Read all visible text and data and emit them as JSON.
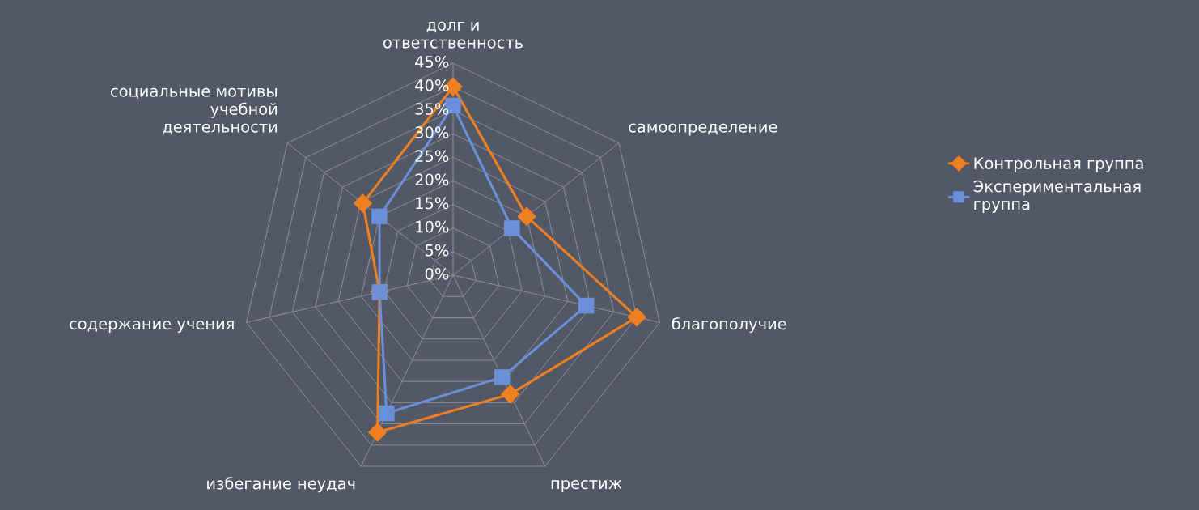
{
  "chart_data": {
    "type": "radar",
    "categories": [
      "долг и\nответственность",
      "самоопределение",
      "благополучие",
      "престиж",
      "избегание неудач",
      "содержание учения",
      "социальные мотивы\nучебной\nдеятельности"
    ],
    "series": [
      {
        "name": "Контрольная группа",
        "color": "#f07f22",
        "marker": "diamond",
        "values": [
          40,
          20,
          40,
          28,
          37,
          16,
          24.5
        ]
      },
      {
        "name": "Экспериментальная\nгруппа",
        "color": "#6b8fd8",
        "marker": "square",
        "values": [
          36,
          16,
          29,
          24,
          32.5,
          16,
          20
        ]
      }
    ],
    "ylim": [
      0,
      45
    ],
    "yticks": [
      {
        "value": 0,
        "label": "0%"
      },
      {
        "value": 5,
        "label": "5%"
      },
      {
        "value": 10,
        "label": "10%"
      },
      {
        "value": 15,
        "label": "15%"
      },
      {
        "value": 20,
        "label": "20%"
      },
      {
        "value": 25,
        "label": "25%"
      },
      {
        "value": 30,
        "label": "30%"
      },
      {
        "value": 35,
        "label": "35%"
      },
      {
        "value": 40,
        "label": "40%"
      },
      {
        "value": 45,
        "label": "45%"
      }
    ],
    "grid": true,
    "legend": "right"
  }
}
